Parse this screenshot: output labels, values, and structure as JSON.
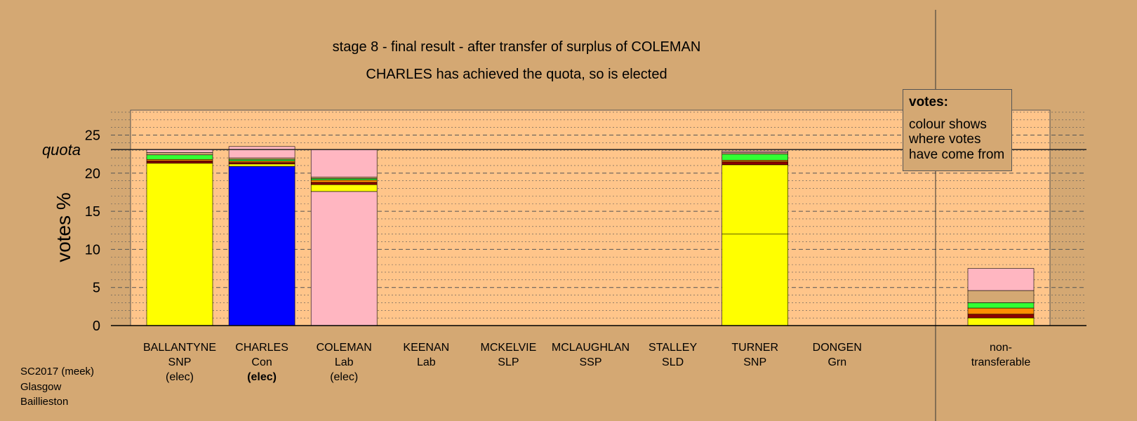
{
  "chart_data": {
    "type": "bar",
    "stacked": true,
    "title": "stage 8 - final result - after transfer of surplus of COLEMAN",
    "subtitle": "CHARLES has achieved the quota, so is elected",
    "ylabel": "votes %",
    "ylim": [
      0,
      28
    ],
    "yticks": [
      "0",
      "5",
      "10",
      "15",
      "20",
      "25"
    ],
    "quota": {
      "label": "quota",
      "value": 23.1
    },
    "grid": "dashed major, dotted minor",
    "candidates": [
      {
        "name": "BALLANTYNE",
        "party": "SNP",
        "status": "(elec)",
        "status_bold": false,
        "segments": [
          {
            "color": "#FFFF00",
            "value": 21.3
          },
          {
            "color": "#8B0000",
            "value": 0.3
          },
          {
            "color": "#FF8C00",
            "value": 0.2
          },
          {
            "color": "#33FF33",
            "value": 0.6
          },
          {
            "color": "#D4A873",
            "value": 0.3
          },
          {
            "color": "#FFB6C1",
            "value": 0.4
          }
        ]
      },
      {
        "name": "CHARLES",
        "party": "Con",
        "status": "(elec)",
        "status_bold": true,
        "segments": [
          {
            "color": "#0000FF",
            "value": 20.9
          },
          {
            "color": "#FFFF00",
            "value": 0.3
          },
          {
            "color": "#8B0000",
            "value": 0.2
          },
          {
            "color": "#FF8C00",
            "value": 0.2
          },
          {
            "color": "#33FF33",
            "value": 0.2
          },
          {
            "color": "#D4A873",
            "value": 0.2
          },
          {
            "color": "#FFB6C1",
            "value": 1.5
          }
        ]
      },
      {
        "name": "COLEMAN",
        "party": "Lab",
        "status": "(elec)",
        "status_bold": false,
        "segments": [
          {
            "color": "#FFB6C1",
            "value": 17.6
          },
          {
            "color": "#FFFF00",
            "value": 0.9
          },
          {
            "color": "#8B0000",
            "value": 0.3
          },
          {
            "color": "#FF8C00",
            "value": 0.3
          },
          {
            "color": "#33FF33",
            "value": 0.2
          },
          {
            "color": "#D4A873",
            "value": 0.2
          },
          {
            "color": "#FFB6C1",
            "value": 3.6
          }
        ]
      },
      {
        "name": "KEENAN",
        "party": "Lab",
        "status": "",
        "status_bold": false,
        "segments": []
      },
      {
        "name": "MCKELVIE",
        "party": "SLP",
        "status": "",
        "status_bold": false,
        "segments": []
      },
      {
        "name": "MCLAUGHLAN",
        "party": "SSP",
        "status": "",
        "status_bold": false,
        "segments": []
      },
      {
        "name": "STALLEY",
        "party": "SLD",
        "status": "",
        "status_bold": false,
        "segments": []
      },
      {
        "name": "TURNER",
        "party": "SNP",
        "status": "",
        "status_bold": false,
        "segments": [
          {
            "color": "#FFFF00",
            "value": 12.0
          },
          {
            "color": "#FFFF00",
            "value": 9.1
          },
          {
            "color": "#8B0000",
            "value": 0.4
          },
          {
            "color": "#FF8C00",
            "value": 0.2
          },
          {
            "color": "#33FF33",
            "value": 0.8
          },
          {
            "color": "#D4A873",
            "value": 0.2
          },
          {
            "color": "#FFB6C1",
            "value": 0.2
          }
        ]
      },
      {
        "name": "DONGEN",
        "party": "Grn",
        "status": "",
        "status_bold": false,
        "segments": []
      }
    ],
    "nontransferable": {
      "label1": "non-",
      "label2": "transferable",
      "segments": [
        {
          "color": "#FFFF00",
          "value": 1.0
        },
        {
          "color": "#8B0000",
          "value": 0.5
        },
        {
          "color": "#FF8C00",
          "value": 0.8
        },
        {
          "color": "#33FF33",
          "value": 0.7
        },
        {
          "color": "#D4A873",
          "value": 1.6
        },
        {
          "color": "#FFB6C1",
          "value": 2.9
        }
      ]
    }
  },
  "legend": {
    "title": "votes:",
    "text": [
      "colour shows",
      "where votes",
      "have come from"
    ]
  },
  "source": [
    "SC2017 (meek)",
    "Glasgow",
    "Baillieston"
  ]
}
